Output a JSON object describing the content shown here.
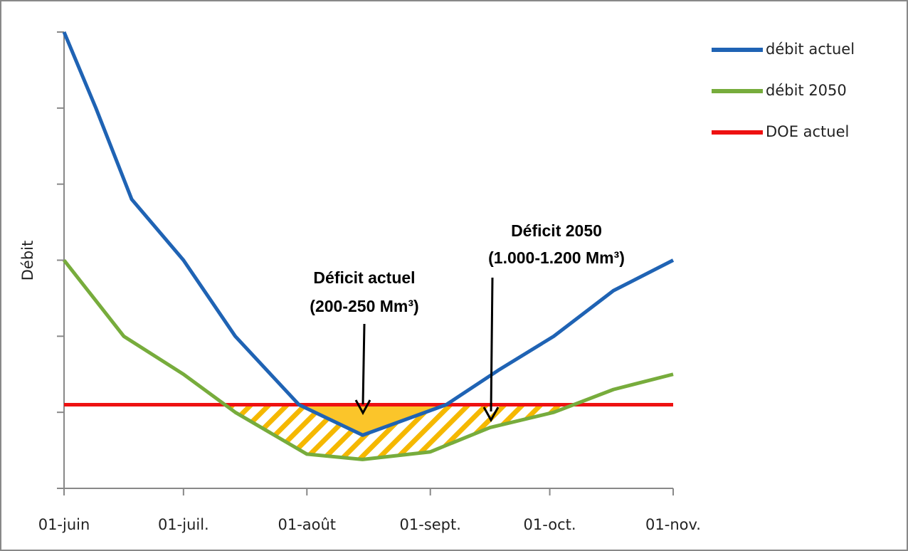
{
  "chart_data": {
    "type": "line",
    "y_label": "Débit",
    "x": [],
    "xlim": [
      0,
      153
    ],
    "xticks": [
      {
        "value": 0,
        "label": "01-juin"
      },
      {
        "value": 30,
        "label": "01-juil."
      },
      {
        "value": 61,
        "label": "01-août"
      },
      {
        "value": 92,
        "label": "01-sept."
      },
      {
        "value": 122,
        "label": "01-oct."
      },
      {
        "value": 153,
        "label": "01-nov."
      }
    ],
    "ylim": [
      0,
      6
    ],
    "yticks": [
      0,
      1,
      2,
      3,
      4,
      5,
      6
    ],
    "series": [
      {
        "name": "débit actuel",
        "color": "#1f63b4",
        "x": [
          0,
          8,
          17,
          30,
          43,
          59,
          75,
          96,
          109,
          123,
          138,
          153
        ],
        "values": [
          6,
          5.0,
          3.8,
          3.0,
          2.0,
          1.1,
          0.7,
          1.1,
          1.55,
          2.0,
          2.6,
          3.0
        ]
      },
      {
        "name": "débit 2050",
        "color": "#77ac3c",
        "x": [
          0,
          15,
          30,
          43,
          61,
          75,
          92,
          107,
          123,
          138,
          153
        ],
        "values": [
          3.0,
          2.0,
          1.5,
          1.0,
          0.45,
          0.38,
          0.48,
          0.8,
          1.0,
          1.3,
          1.5
        ]
      },
      {
        "name": "DOE actuel",
        "color": "#ee1111",
        "x": [
          0,
          153
        ],
        "values": [
          1.1,
          1.1
        ]
      }
    ],
    "legend": "right",
    "annotations": [
      {
        "lines": [
          "Déficit actuel",
          "(200-250 Mm³)"
        ]
      },
      {
        "lines": [
          "Déficit 2050",
          "(1.000-1.200 Mm³)"
        ]
      }
    ]
  }
}
